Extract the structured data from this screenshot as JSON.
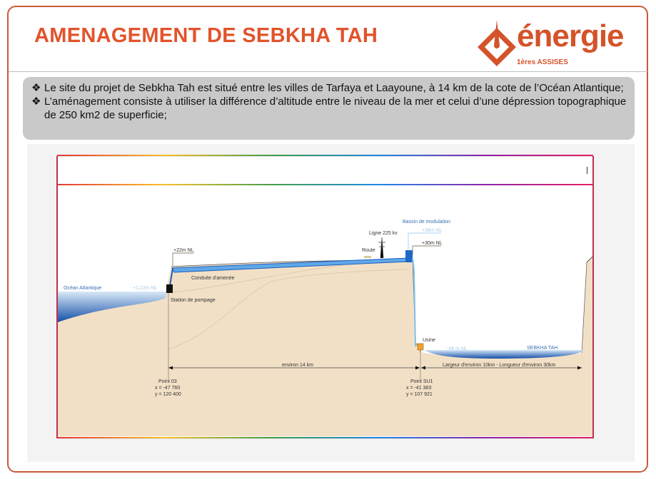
{
  "title": "AMENAGEMENT DE SEBKHA TAH",
  "logo": {
    "word": "énergie",
    "subtitle": "1ères ASSISES"
  },
  "bullets": [
    "Le site du projet de Sebkha Tah est situé entre les villes de Tarfaya et Laayoune, à 14 km de la cote de l’Océan Atlantique;",
    " L’aménagement consiste à utiliser la différence d’altitude entre le niveau de la mer et celui d’une dépression topographique de 250 km2 de superficie;"
  ],
  "diagram": {
    "ocean": "Océan Atlantique",
    "ocean_level": "+1.22m NL",
    "intake_level": "+22m NL",
    "conduit": "Conduite d'amenée",
    "pump_station": "Station de pompage",
    "line": "Ligne 225 kv",
    "road": "Route",
    "basin": "Bassin de modulation",
    "basin_level_water": "+36m NL",
    "basin_level": "+30m NL",
    "plant": "Usine",
    "sebkha_level": "-49 m NL",
    "sebkha": "SEBKHA TAH",
    "distance": "environ 14 km",
    "dimensions": "Largeur d'environ 10km  -  Longueur d'environ 30km",
    "point1": {
      "name": "Point 03",
      "x": "x =  -47 760",
      "y": "y = 120 400"
    },
    "point2": {
      "name": "Point SU1",
      "x": "x =  -41 383",
      "y": "y =  107 921"
    }
  },
  "colors": {
    "title": "#e2532b",
    "sand": "#f2e0c6",
    "water": "#1f6fc9",
    "bullet_box": "#c9c9c9"
  }
}
